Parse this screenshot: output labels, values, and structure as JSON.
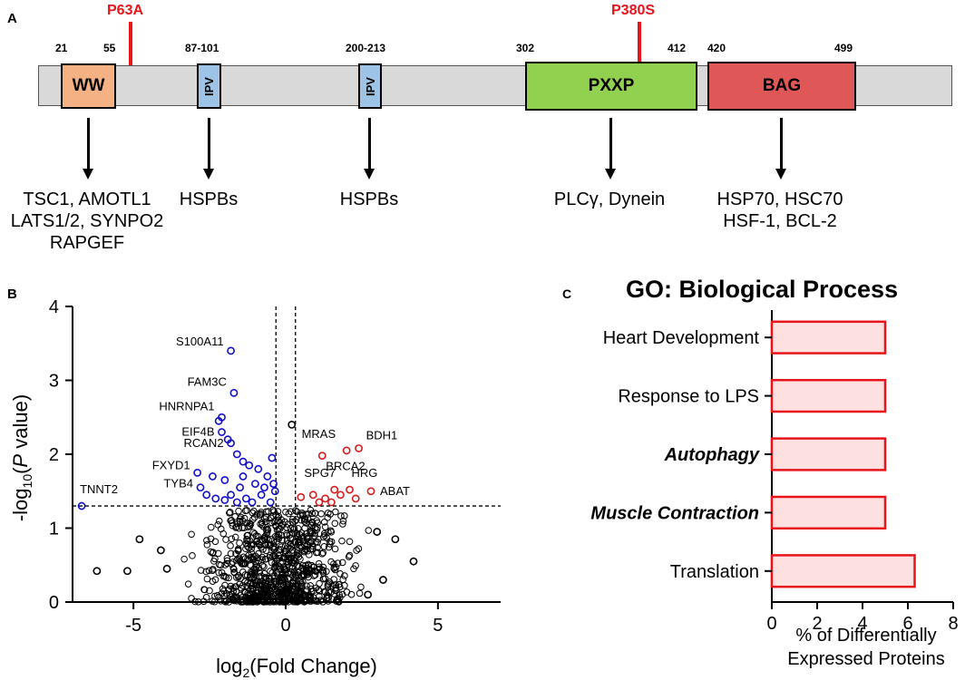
{
  "panel_a": {
    "label": "A",
    "mutations": [
      {
        "name": "P63A",
        "color": "#e8141c"
      },
      {
        "name": "P380S",
        "color": "#e8141c"
      }
    ],
    "numbers": [
      "21",
      "55",
      "87-101",
      "200-213",
      "302",
      "412",
      "420",
      "499"
    ],
    "domains": [
      {
        "name": "WW",
        "color": "#f4b183"
      },
      {
        "name": "IPV",
        "color": "#9dc3e6"
      },
      {
        "name": "IPV",
        "color": "#9dc3e6"
      },
      {
        "name": "PXXP",
        "color": "#92d050"
      },
      {
        "name": "BAG",
        "color": "#e05757"
      }
    ],
    "backbone_color": "#d9d9d9",
    "partners": [
      [
        "TSC1, AMOTL1",
        "LATS1/2, SYNPO2",
        "RAPGEF"
      ],
      [
        "HSPBs"
      ],
      [
        "HSPBs"
      ],
      [
        "PLCγ, Dynein"
      ],
      [
        "HSP70, HSC70",
        "HSF-1, BCL-2"
      ]
    ]
  },
  "panel_b": {
    "label": "B",
    "xlabel_prefix": "log",
    "xlabel_sub": "2",
    "xlabel_suffix": "(Fold Change)",
    "ylabel_prefix": "-log",
    "ylabel_sub": "10",
    "ylabel_open": "(",
    "ylabel_italic": "P",
    "ylabel_suffix": " value)",
    "x_ticks": [
      "-5",
      "0",
      "5"
    ],
    "y_ticks": [
      "0",
      "1",
      "2",
      "3",
      "4"
    ],
    "colors": {
      "down": "#1010c8",
      "up": "#d81c1c",
      "ns": "#000000"
    }
  },
  "panel_c": {
    "label": "C",
    "title": "GO: Biological Process",
    "x_ticks": [
      "0",
      "2",
      "4",
      "6",
      "8"
    ],
    "xlabel_line1": "% of Differentially",
    "xlabel_line2": "Expressed Proteins"
  },
  "chart_data": [
    {
      "type": "scatter",
      "title": "",
      "xlabel": "log2(Fold Change)",
      "ylabel": "-log10(P value)",
      "xlim": [
        -7,
        7
      ],
      "ylim": [
        0,
        4
      ],
      "x_ticks": [
        -5,
        0,
        5
      ],
      "y_ticks": [
        0,
        1,
        2,
        3,
        4
      ],
      "thresholds": {
        "x": [
          -0.32,
          0.32
        ],
        "y": 1.3
      },
      "series": [
        {
          "group": "down",
          "color": "#1010c8",
          "points": [
            {
              "x": -1.8,
              "y": 3.4,
              "label": "S100A11"
            },
            {
              "x": -1.7,
              "y": 2.83,
              "label": "FAM3C"
            },
            {
              "x": -2.1,
              "y": 2.5,
              "label": "HNRNPA1"
            },
            {
              "x": -2.1,
              "y": 2.3,
              "label": "EIF4B"
            },
            {
              "x": -1.8,
              "y": 2.15,
              "label": "RCAN2"
            },
            {
              "x": -2.9,
              "y": 1.75,
              "label": "FXYD1"
            },
            {
              "x": -6.7,
              "y": 1.3,
              "label": "TNNT2"
            },
            {
              "x": -2.8,
              "y": 1.55,
              "label": "TYB4"
            },
            {
              "x": -2.2,
              "y": 2.45
            },
            {
              "x": -1.9,
              "y": 2.2
            },
            {
              "x": -1.6,
              "y": 2.0
            },
            {
              "x": -1.4,
              "y": 1.9
            },
            {
              "x": -1.2,
              "y": 1.85
            },
            {
              "x": -0.9,
              "y": 1.8
            },
            {
              "x": -0.6,
              "y": 1.7
            },
            {
              "x": -0.45,
              "y": 1.95
            },
            {
              "x": -0.4,
              "y": 1.6
            },
            {
              "x": -1.0,
              "y": 1.6
            },
            {
              "x": -1.5,
              "y": 1.55
            },
            {
              "x": -2.0,
              "y": 1.65
            },
            {
              "x": -2.4,
              "y": 1.7
            },
            {
              "x": -2.6,
              "y": 1.45
            },
            {
              "x": -2.3,
              "y": 1.4
            },
            {
              "x": -1.8,
              "y": 1.45
            },
            {
              "x": -1.3,
              "y": 1.4
            },
            {
              "x": -0.8,
              "y": 1.45
            },
            {
              "x": -0.5,
              "y": 1.35
            },
            {
              "x": -1.1,
              "y": 1.35
            },
            {
              "x": -1.6,
              "y": 1.35
            },
            {
              "x": -2.0,
              "y": 1.38
            },
            {
              "x": -0.7,
              "y": 1.55
            },
            {
              "x": -1.4,
              "y": 1.7
            },
            {
              "x": -0.35,
              "y": 1.5
            }
          ]
        },
        {
          "group": "up",
          "color": "#d81c1c",
          "points": [
            {
              "x": 2.0,
              "y": 2.05,
              "label": "MRAS"
            },
            {
              "x": 2.4,
              "y": 2.08,
              "label": "BDH1"
            },
            {
              "x": 1.2,
              "y": 1.98,
              "label": "BRCA2"
            },
            {
              "x": 1.6,
              "y": 1.52,
              "label": "SPG7"
            },
            {
              "x": 2.1,
              "y": 1.52,
              "label": "HRG"
            },
            {
              "x": 2.8,
              "y": 1.5,
              "label": "ABAT"
            },
            {
              "x": 0.5,
              "y": 1.42
            },
            {
              "x": 0.9,
              "y": 1.45
            },
            {
              "x": 1.3,
              "y": 1.4
            },
            {
              "x": 1.8,
              "y": 1.45
            },
            {
              "x": 2.3,
              "y": 1.4
            },
            {
              "x": 1.5,
              "y": 1.35
            },
            {
              "x": 1.1,
              "y": 1.35
            }
          ]
        },
        {
          "group": "ns",
          "color": "#000000",
          "points": [
            {
              "x": 0.2,
              "y": 2.4
            },
            {
              "x": -6.2,
              "y": 0.42
            },
            {
              "x": -5.2,
              "y": 0.42
            },
            {
              "x": -4.8,
              "y": 0.85
            },
            {
              "x": -4.1,
              "y": 0.7
            },
            {
              "x": 4.2,
              "y": 0.55
            },
            {
              "x": 3.6,
              "y": 0.85
            },
            {
              "x": 3.0,
              "y": 0.95
            },
            {
              "x": -3.9,
              "y": 0.45
            },
            {
              "x": 3.2,
              "y": 0.3
            },
            {
              "x": 2.7,
              "y": 0.1
            }
          ]
        }
      ]
    },
    {
      "type": "bar",
      "orientation": "horizontal",
      "title": "GO: Biological Process",
      "categories": [
        "Heart Development",
        "Response to LPS",
        "Autophagy",
        "Muscle Contraction",
        "Translation"
      ],
      "emphasis": [
        "normal",
        "normal",
        "bold-italic",
        "bold-italic",
        "normal"
      ],
      "values": [
        5.0,
        5.0,
        5.0,
        5.0,
        6.3
      ],
      "xlabel": "% of Differentially Expressed Proteins",
      "xlim": [
        0,
        8
      ],
      "bar_fill": "#fde0e0",
      "bar_stroke": "#e8141c"
    }
  ]
}
